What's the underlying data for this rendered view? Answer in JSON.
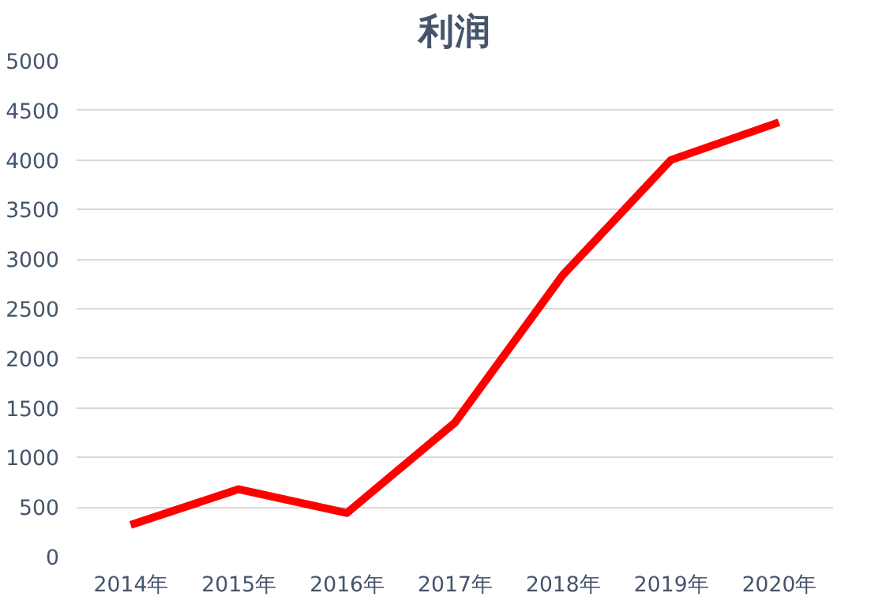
{
  "chart_data": {
    "type": "line",
    "title": "利润",
    "categories": [
      "2014年",
      "2015年",
      "2016年",
      "2017年",
      "2018年",
      "2019年",
      "2020年"
    ],
    "series": [
      {
        "color": "#ff0000",
        "values": [
          320,
          680,
          440,
          1350,
          2840,
          4000,
          4380
        ]
      }
    ],
    "ylim": [
      0,
      5000
    ],
    "yticks": [
      0,
      500,
      1000,
      1500,
      2000,
      2500,
      3000,
      3500,
      4000,
      4500,
      5000
    ],
    "grid": "y",
    "marker": "none",
    "line_style": "solid"
  }
}
